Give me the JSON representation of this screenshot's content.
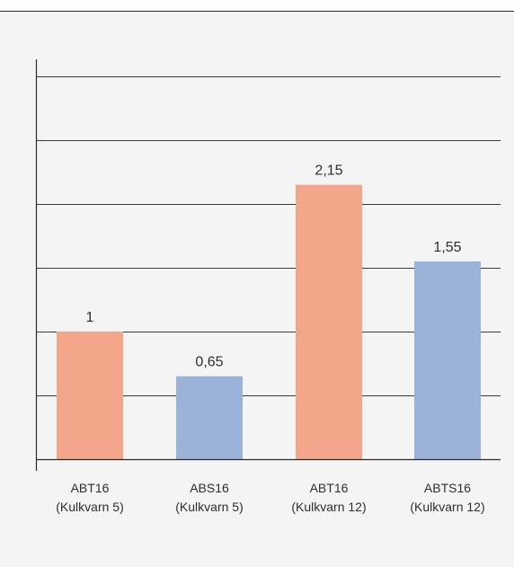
{
  "chart_data": {
    "type": "bar",
    "title": "",
    "xlabel": "",
    "ylabel": "",
    "categories": [
      [
        "ABT16",
        "(Kulkvarn 5)"
      ],
      [
        "ABS16",
        "(Kulkvarn 5)"
      ],
      [
        "ABT16",
        "(Kulkvarn 12)"
      ],
      [
        "ABTS16",
        "(Kulkvarn 12)"
      ]
    ],
    "values": [
      1,
      0.65,
      2.15,
      1.55
    ],
    "value_labels": [
      "1",
      "0,65",
      "2,15",
      "1,55"
    ],
    "bar_colors": [
      "#f4a68a",
      "#9bb3d9",
      "#f4a68a",
      "#9bb3d9"
    ],
    "ylim": [
      0,
      3
    ],
    "gridlines": [
      0.5,
      1,
      1.5,
      2,
      2.5,
      3
    ],
    "grid": true,
    "legend": "none"
  },
  "colors": {
    "background": "#f4f4f4",
    "axis": "#2b2b2b",
    "grid": "#3a3a3a",
    "text": "#2d2d2d"
  }
}
